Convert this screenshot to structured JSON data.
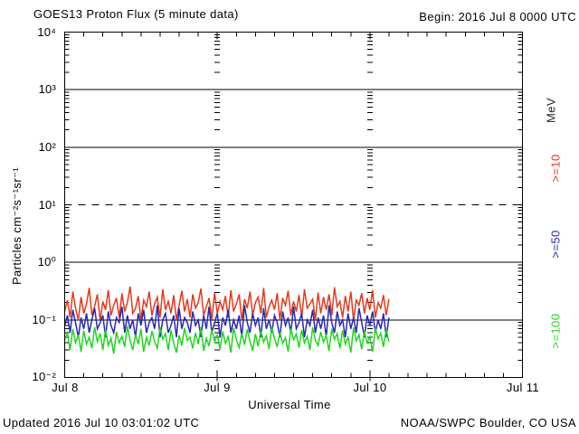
{
  "header": {
    "title": "GOES13 Proton Flux (5 minute data)",
    "begin": "Begin: 2016 Jul 8 0000 UTC"
  },
  "footer": {
    "updated": "Updated 2016 Jul 10 03:01:02 UTC",
    "source": "NOAA/SWPC Boulder, CO USA"
  },
  "chart_data": {
    "type": "line",
    "title": "GOES13 Proton Flux (5 minute data)",
    "xlabel": "Universal Time",
    "ylabel": "Particles cm⁻²s⁻¹sr⁻¹",
    "x_axis": {
      "tick_labels": [
        "Jul 8",
        "Jul 9",
        "Jul 10",
        "Jul 11"
      ],
      "span_hours": 72,
      "minor_tick_hours": 3
    },
    "y_axis": {
      "scale": "log",
      "min_exp": -2,
      "max_exp": 4,
      "tick_labels": [
        "10⁴",
        "10³",
        "10²",
        "10¹",
        "10⁰",
        "10⁻¹",
        "10⁻²"
      ]
    },
    "grid": {
      "solid_exps": [
        3,
        2,
        0,
        -1
      ],
      "dashed_exps": [
        1
      ]
    },
    "legend": {
      "units_label": "MeV",
      "units_color": "#222222",
      "items": [
        {
          "label": ">=10",
          "color": "#de3a1e"
        },
        {
          "label": ">=50",
          "color": "#2b2bb0"
        },
        {
          "label": ">=100",
          "color": "#2bd52b"
        }
      ]
    },
    "data_end_hours": 51,
    "series": [
      {
        "name": ">=10 MeV",
        "color": "#e43a1c",
        "values": [
          0.14,
          0.22,
          0.11,
          0.31,
          0.16,
          0.1,
          0.25,
          0.13,
          0.19,
          0.36,
          0.12,
          0.17,
          0.28,
          0.1,
          0.21,
          0.15,
          0.33,
          0.12,
          0.18,
          0.24,
          0.11,
          0.29,
          0.14,
          0.2,
          0.38,
          0.13,
          0.16,
          0.26,
          0.1,
          0.22,
          0.17,
          0.31,
          0.12,
          0.19,
          0.25,
          0.11,
          0.34,
          0.15,
          0.21,
          0.13,
          0.27,
          0.1,
          0.18,
          0.32,
          0.14,
          0.23,
          0.11,
          0.28,
          0.16,
          0.2,
          0.35,
          0.12,
          0.17,
          0.24,
          0.1,
          0.3,
          0.13,
          0.21,
          0.15,
          0.26,
          0.11,
          0.33,
          0.14,
          0.19,
          0.28,
          0.1,
          0.23,
          0.16,
          0.31,
          0.12,
          0.2,
          0.25,
          0.13,
          0.36,
          0.11,
          0.17,
          0.22,
          0.15,
          0.29,
          0.1,
          0.24,
          0.18,
          0.32,
          0.12,
          0.21,
          0.14,
          0.27,
          0.11,
          0.34,
          0.16,
          0.19,
          0.23,
          0.1,
          0.3,
          0.13,
          0.25,
          0.15,
          0.28,
          0.12,
          0.37,
          0.17,
          0.21,
          0.11,
          0.26,
          0.14,
          0.31,
          0.1,
          0.22,
          0.18,
          0.29,
          0.13,
          0.24,
          0.15,
          0.33,
          0.11,
          0.2,
          0.16,
          0.27,
          0.12,
          0.23
        ]
      },
      {
        "name": ">=50 MeV",
        "color": "#2828b4",
        "values": [
          0.08,
          0.12,
          0.06,
          0.15,
          0.09,
          0.05,
          0.11,
          0.07,
          0.13,
          0.06,
          0.1,
          0.16,
          0.07,
          0.09,
          0.12,
          0.05,
          0.14,
          0.08,
          0.06,
          0.11,
          0.09,
          0.17,
          0.06,
          0.12,
          0.07,
          0.1,
          0.05,
          0.13,
          0.08,
          0.15,
          0.06,
          0.09,
          0.11,
          0.07,
          0.18,
          0.05,
          0.1,
          0.13,
          0.06,
          0.08,
          0.12,
          0.05,
          0.16,
          0.07,
          0.11,
          0.09,
          0.06,
          0.14,
          0.08,
          0.1,
          0.05,
          0.12,
          0.07,
          0.17,
          0.06,
          0.09,
          0.13,
          0.05,
          0.11,
          0.08,
          0.15,
          0.06,
          0.1,
          0.07,
          0.12,
          0.05,
          0.18,
          0.09,
          0.06,
          0.13,
          0.08,
          0.11,
          0.05,
          0.16,
          0.07,
          0.1,
          0.06,
          0.12,
          0.09,
          0.05,
          0.14,
          0.08,
          0.11,
          0.06,
          0.17,
          0.07,
          0.09,
          0.13,
          0.05,
          0.1,
          0.08,
          0.15,
          0.06,
          0.11,
          0.07,
          0.12,
          0.05,
          0.18,
          0.09,
          0.06,
          0.14,
          0.08,
          0.1,
          0.05,
          0.13,
          0.07,
          0.11,
          0.06,
          0.16,
          0.09,
          0.05,
          0.12,
          0.08,
          0.14,
          0.06,
          0.1,
          0.07,
          0.13,
          0.05,
          0.11
        ]
      },
      {
        "name": ">=100 MeV",
        "color": "#22d522",
        "values": [
          0.045,
          0.06,
          0.03,
          0.07,
          0.04,
          0.055,
          0.028,
          0.065,
          0.038,
          0.05,
          0.032,
          0.075,
          0.042,
          0.058,
          0.03,
          0.068,
          0.036,
          0.048,
          0.026,
          0.062,
          0.04,
          0.052,
          0.034,
          0.078,
          0.044,
          0.03,
          0.056,
          0.038,
          0.07,
          0.028,
          0.05,
          0.036,
          0.064,
          0.042,
          0.032,
          0.074,
          0.046,
          0.058,
          0.03,
          0.066,
          0.04,
          0.027,
          0.054,
          0.036,
          0.072,
          0.044,
          0.05,
          0.032,
          0.06,
          0.038,
          0.076,
          0.029,
          0.048,
          0.035,
          0.068,
          0.042,
          0.055,
          0.031,
          0.063,
          0.039,
          0.051,
          0.027,
          0.073,
          0.045,
          0.033,
          0.059,
          0.037,
          0.069,
          0.043,
          0.029,
          0.057,
          0.035,
          0.065,
          0.041,
          0.053,
          0.031,
          0.077,
          0.047,
          0.034,
          0.061,
          0.039,
          0.049,
          0.028,
          0.071,
          0.045,
          0.057,
          0.033,
          0.067,
          0.04,
          0.052,
          0.03,
          0.075,
          0.044,
          0.036,
          0.062,
          0.041,
          0.054,
          0.029,
          0.07,
          0.046,
          0.058,
          0.032,
          0.066,
          0.038,
          0.05,
          0.027,
          0.074,
          0.043,
          0.055,
          0.031,
          0.064,
          0.04,
          0.051,
          0.028,
          0.072,
          0.047,
          0.059,
          0.034,
          0.068,
          0.042
        ]
      }
    ]
  }
}
